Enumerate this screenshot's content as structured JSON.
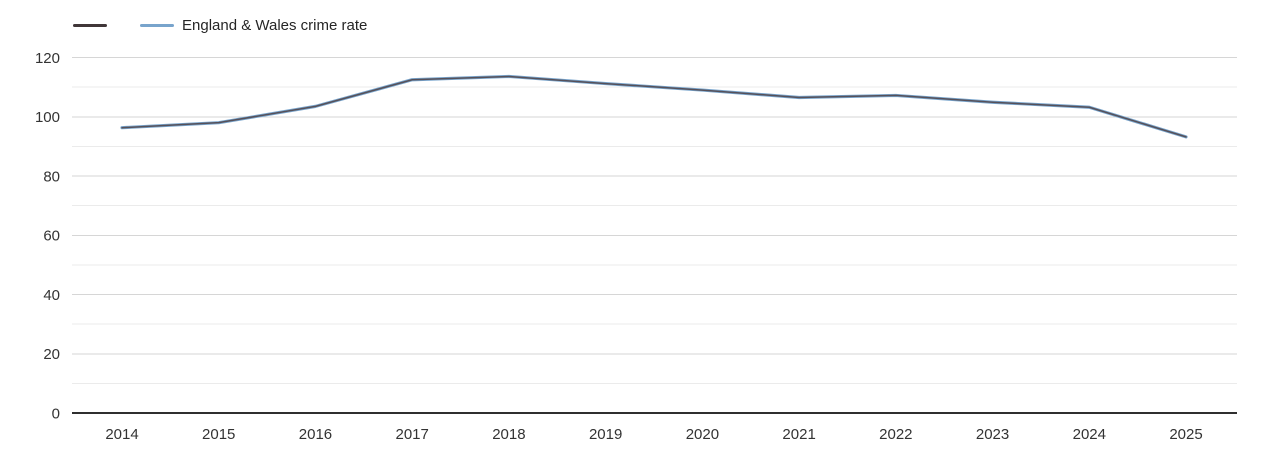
{
  "legend": {
    "items": [
      {
        "label": "",
        "color": "#403638"
      },
      {
        "label": "England & Wales crime rate",
        "color": "#78a4cc"
      }
    ]
  },
  "chart_data": {
    "type": "line",
    "title": "",
    "xlabel": "",
    "ylabel": "",
    "x": [
      2014,
      2015,
      2016,
      2017,
      2018,
      2019,
      2020,
      2021,
      2022,
      2023,
      2024,
      2025
    ],
    "x_tick_labels": [
      "2014",
      "2015",
      "2016",
      "2017",
      "2018",
      "2019",
      "2020",
      "2021",
      "2022",
      "2023",
      "2024",
      "2025"
    ],
    "series": [
      {
        "name": "",
        "color": "#504244",
        "values": [
          96.3,
          98,
          103.5,
          112.5,
          113.6,
          111.2,
          109,
          106.5,
          107.2,
          104.9,
          103.2,
          93.2
        ]
      },
      {
        "name": "England & Wales crime rate",
        "color": "#78a4cc",
        "values": [
          96.3,
          98,
          103.5,
          112.5,
          113.6,
          111.2,
          109,
          106.5,
          107.2,
          104.9,
          103.2,
          93.2
        ]
      }
    ],
    "ylim": [
      0,
      120
    ],
    "y_major_ticks": [
      0,
      20,
      40,
      60,
      80,
      100,
      120
    ],
    "y_minor_ticks": [
      10,
      30,
      50,
      70,
      90,
      110
    ],
    "grid": true,
    "legend_position": "top-left"
  },
  "colors": {
    "grid_major": "#d6d6d6",
    "grid_minor": "#ebebeb",
    "axis_line": "#2f2f2f",
    "tick_label": "#333333"
  }
}
